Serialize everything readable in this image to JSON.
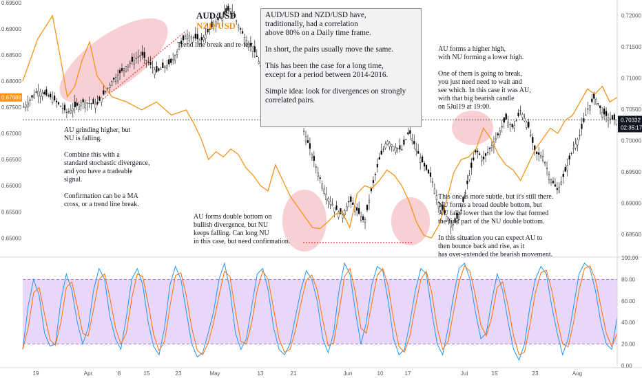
{
  "legend": {
    "aud": "AUD/USD",
    "nzd": "NZD/USD"
  },
  "infobox": {
    "p1": "AUD/USD and NZD/USD have,\ntraditionally, had a correlation\nabove 80% on a Daily time frame.",
    "p2": "In short, the pairs usually move the same.",
    "p3": "This has been the case for a long time,\nexcept for a period between 2014-2016.",
    "p4": "Simple idea: look for divergences on strongly\ncorrelated pairs."
  },
  "notes": {
    "trendline": "Trend line break and re-test.",
    "grinding": "AU grinding higher, but\nNU is falling.\n\nCombine this with a\nstandard stochastic divergence,\nand you have a tradeable\nsignal.\n\nConfirmation can be a MA\ncross, or a trend line break.",
    "double_bottom": "AU forms double bottom on\nbullish divergence, but NU\nkeeps falling. Can long NU\nin this case, but need confirmation.",
    "higher_high": "AU forms a higher high,\nwith NU forming a lower high.\n\nOne of them is going to break,\nyou just need need to wait and\nsee which. In this case it was AU,\nwith that big bearish candle\non 5Jul19 at 19:00.",
    "subtle": "This one is more subtle, but it's still there.\nNU forms a broad double bottom, but\nAU falls lower than the low that formed\nthe first part of the NU double bottom.\n\nIn this situation you can expect AU to\nthen bounce back and rise, as it\nhas over-extended the bearish movement."
  },
  "chart_data": {
    "type": "line",
    "x": [
      "19",
      "Apr",
      "8",
      "15",
      "23",
      "May",
      "13",
      "21",
      "Jun",
      "10",
      "17",
      "Jul",
      "15",
      "23",
      "Aug"
    ],
    "left_axis": {
      "ticks": [
        "0.69500",
        "0.69000",
        "0.68500",
        "0.68000",
        "0.67500",
        "0.67000",
        "0.66500",
        "0.66000",
        "0.65500",
        "0.65000"
      ],
      "ylim": [
        0.6465,
        0.6955
      ],
      "current": "0.67688"
    },
    "right_axis": {
      "ticks": [
        "0.72000",
        "0.71500",
        "0.71000",
        "0.70500",
        "0.70000",
        "0.69500",
        "0.69000",
        "0.68500"
      ],
      "ylim": [
        0.6815,
        0.7225
      ],
      "current": "0.70332",
      "countdown": "02:35:17"
    },
    "series": [
      {
        "name": "AUD/USD",
        "color": "#000000",
        "points": [
          [
            0,
            0.7052
          ],
          [
            4,
            0.708
          ],
          [
            8,
            0.7068
          ],
          [
            12,
            0.7045
          ],
          [
            16,
            0.7062
          ],
          [
            20,
            0.7058
          ],
          [
            24,
            0.7095
          ],
          [
            28,
            0.712
          ],
          [
            32,
            0.7138
          ],
          [
            36,
            0.711
          ],
          [
            40,
            0.7125
          ],
          [
            44,
            0.717
          ],
          [
            48,
            0.716
          ],
          [
            52,
            0.719
          ],
          [
            56,
            0.7212
          ],
          [
            58,
            0.7185
          ],
          [
            60,
            0.7162
          ],
          [
            62,
            0.7148
          ],
          [
            64,
            0.712
          ],
          [
            66,
            0.7085
          ],
          [
            68,
            0.706
          ],
          [
            70,
            0.7045
          ],
          [
            72,
            0.703
          ],
          [
            74,
            0.704
          ],
          [
            76,
            0.701
          ],
          [
            78,
            0.6975
          ],
          [
            80,
            0.694
          ],
          [
            82,
            0.691
          ],
          [
            84,
            0.6892
          ],
          [
            86,
            0.688
          ],
          [
            88,
            0.6905
          ],
          [
            90,
            0.6888
          ],
          [
            92,
            0.687
          ],
          [
            94,
            0.6925
          ],
          [
            96,
            0.697
          ],
          [
            98,
            0.7
          ],
          [
            100,
            0.699
          ],
          [
            102,
            0.6985
          ],
          [
            104,
            0.7015
          ],
          [
            106,
            0.6985
          ],
          [
            108,
            0.696
          ],
          [
            110,
            0.694
          ],
          [
            112,
            0.69
          ],
          [
            114,
            0.688
          ],
          [
            116,
            0.6865
          ],
          [
            118,
            0.6888
          ],
          [
            120,
            0.694
          ],
          [
            122,
            0.6985
          ],
          [
            124,
            0.697
          ],
          [
            126,
            0.699
          ],
          [
            128,
            0.701
          ],
          [
            130,
            0.7035
          ],
          [
            132,
            0.702
          ],
          [
            134,
            0.7048
          ],
          [
            136,
            0.7025
          ],
          [
            138,
            0.698
          ],
          [
            140,
            0.6975
          ],
          [
            142,
            0.694
          ],
          [
            144,
            0.692
          ],
          [
            146,
            0.695
          ],
          [
            148,
            0.6985
          ],
          [
            150,
            0.701
          ],
          [
            152,
            0.705
          ],
          [
            154,
            0.707
          ],
          [
            156,
            0.7045
          ],
          [
            158,
            0.7035
          ],
          [
            160,
            0.7033
          ]
        ]
      },
      {
        "name": "NZD/USD",
        "color": "#f7931a",
        "points": [
          [
            0,
            0.68
          ],
          [
            4,
            0.688
          ],
          [
            8,
            0.6925
          ],
          [
            10,
            0.685
          ],
          [
            12,
            0.677
          ],
          [
            14,
            0.679
          ],
          [
            16,
            0.684
          ],
          [
            18,
            0.6875
          ],
          [
            20,
            0.681
          ],
          [
            24,
            0.677
          ],
          [
            28,
            0.676
          ],
          [
            32,
            0.6745
          ],
          [
            36,
            0.676
          ],
          [
            40,
            0.6735
          ],
          [
            44,
            0.6745
          ],
          [
            46,
            0.672
          ],
          [
            48,
            0.669
          ],
          [
            50,
            0.665
          ],
          [
            52,
            0.6665
          ],
          [
            54,
            0.6655
          ],
          [
            56,
            0.667
          ],
          [
            58,
            0.666
          ],
          [
            60,
            0.6635
          ],
          [
            62,
            0.662
          ],
          [
            64,
            0.66
          ],
          [
            66,
            0.659
          ],
          [
            68,
            0.664
          ],
          [
            70,
            0.661
          ],
          [
            72,
            0.658
          ],
          [
            74,
            0.656
          ],
          [
            76,
            0.654
          ],
          [
            78,
            0.652
          ],
          [
            80,
            0.6518
          ],
          [
            82,
            0.653
          ],
          [
            84,
            0.6545
          ],
          [
            86,
            0.655
          ],
          [
            88,
            0.652
          ],
          [
            90,
            0.6585
          ],
          [
            92,
            0.66
          ],
          [
            94,
            0.6595
          ],
          [
            96,
            0.661
          ],
          [
            98,
            0.663
          ],
          [
            100,
            0.662
          ],
          [
            102,
            0.66
          ],
          [
            104,
            0.657
          ],
          [
            106,
            0.653
          ],
          [
            108,
            0.6505
          ],
          [
            110,
            0.65
          ],
          [
            112,
            0.6525
          ],
          [
            114,
            0.657
          ],
          [
            116,
            0.6625
          ],
          [
            118,
            0.665
          ],
          [
            120,
            0.6655
          ],
          [
            122,
            0.667
          ],
          [
            124,
            0.671
          ],
          [
            126,
            0.669
          ],
          [
            128,
            0.666
          ],
          [
            130,
            0.664
          ],
          [
            132,
            0.663
          ],
          [
            134,
            0.661
          ],
          [
            136,
            0.664
          ],
          [
            138,
            0.667
          ],
          [
            140,
            0.669
          ],
          [
            142,
            0.671
          ],
          [
            144,
            0.67
          ],
          [
            146,
            0.6725
          ],
          [
            148,
            0.6735
          ],
          [
            150,
            0.676
          ],
          [
            152,
            0.6785
          ],
          [
            154,
            0.6775
          ],
          [
            156,
            0.679
          ],
          [
            158,
            0.676
          ],
          [
            160,
            0.6769
          ]
        ]
      }
    ],
    "stochastic": {
      "yticks": [
        "100.00",
        "80.00",
        "60.00",
        "40.00",
        "20.00",
        "0.00"
      ],
      "ylim": [
        0,
        100
      ],
      "band": [
        20,
        80
      ],
      "k": [
        15,
        55,
        80,
        65,
        30,
        18,
        20,
        60,
        85,
        70,
        40,
        20,
        35,
        70,
        90,
        80,
        45,
        25,
        15,
        45,
        80,
        90,
        75,
        40,
        18,
        10,
        35,
        75,
        92,
        80,
        50,
        20,
        8,
        12,
        30,
        50,
        80,
        95,
        70,
        30,
        15,
        25,
        55,
        85,
        90,
        70,
        35,
        15,
        10,
        20,
        45,
        70,
        88,
        80,
        60,
        25,
        12,
        30,
        70,
        95,
        85,
        50,
        20,
        40,
        75,
        92,
        88,
        60,
        25,
        10,
        15,
        40,
        70,
        90,
        85,
        50,
        20,
        10,
        35,
        65,
        90,
        95,
        80,
        50,
        25,
        30,
        60,
        85,
        70,
        40,
        15,
        5,
        20,
        55,
        80,
        92,
        85,
        55,
        30,
        10,
        25,
        55,
        85,
        95,
        90,
        70,
        40,
        20,
        15,
        45
      ]
    }
  }
}
